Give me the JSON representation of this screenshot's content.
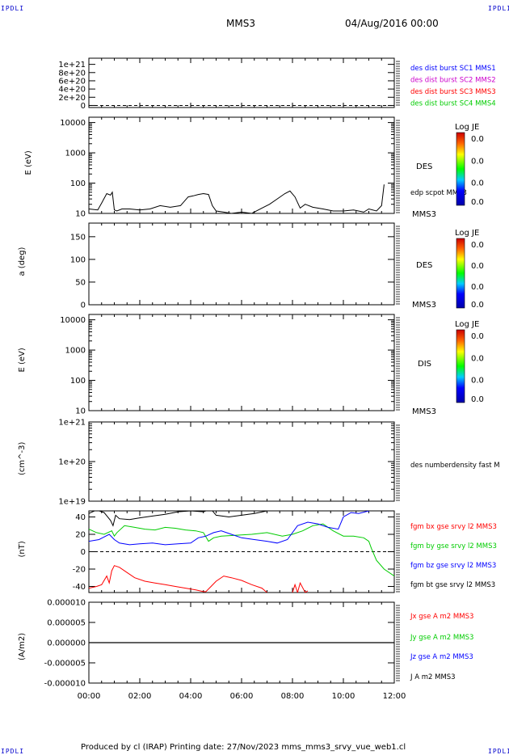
{
  "header": {
    "corner_tl": "IPDLI",
    "corner_tr": "IPDLI",
    "corner_bl": "IPDLI",
    "corner_br": "IPDLI",
    "spacecraft": "MMS3",
    "datetime": "04/Aug/2016 00:00"
  },
  "footer": {
    "text": "Produced by cl (IRAP)   Printing date: 27/Nov/2023   mms_mms3_srvy_vue_web1.cl"
  },
  "colors": {
    "mms1": "#0000ff",
    "mms2": "#cc00cc",
    "mms3": "#ff0000",
    "mms4": "#00cc00",
    "bx": "#ff0000",
    "by": "#00cc00",
    "bz": "#0000ff",
    "bt": "#000000"
  },
  "chart_data": [
    {
      "type": "line",
      "panel": "distribution burst flag",
      "ylim": [
        -5e+19,
        1.15e+21
      ],
      "yticks": [
        "1e+21",
        "8e+20",
        "6e+20",
        "4e+20",
        "2e+20",
        "0"
      ],
      "legend": [
        "des dist burst SC1 MMS1",
        "des dist burst SC2 MMS2",
        "des dist burst SC3 MMS3",
        "des dist burst SC4 MMS4"
      ],
      "zero_line": true
    },
    {
      "type": "heatmap",
      "panel": "DES energy spectrogram",
      "ylabel": "E (eV)",
      "yscale": "log",
      "ylim": [
        10,
        15000
      ],
      "yticks": [
        "10000",
        "1000",
        "100",
        "10"
      ],
      "instrument": "DES",
      "side_label": "MMS3",
      "overlay_label": "edp scpot MMS3",
      "colorbar": {
        "title": "Log JE",
        "ticks": [
          "0.0",
          "0.0",
          "0.0",
          "0.0"
        ]
      },
      "scpot": {
        "x_hours": [
          0,
          0.35,
          0.5,
          0.7,
          0.85,
          0.92,
          1.0,
          1.1,
          1.3,
          1.6,
          2.0,
          2.4,
          2.8,
          3.2,
          3.6,
          3.9,
          4.1,
          4.3,
          4.5,
          4.7,
          4.85,
          5.0,
          5.3,
          5.6,
          6.0,
          6.4,
          6.8,
          7.1,
          7.4,
          7.7,
          7.9,
          8.1,
          8.3,
          8.5,
          8.8,
          9.2,
          9.6,
          10.0,
          10.4,
          10.8,
          11.0,
          11.3,
          11.5,
          11.6
        ],
        "values": [
          14,
          13,
          22,
          45,
          40,
          50,
          13,
          12,
          14,
          14,
          13,
          14,
          18,
          16,
          18,
          35,
          38,
          42,
          45,
          42,
          18,
          12,
          11,
          10,
          11,
          10,
          15,
          20,
          30,
          45,
          55,
          35,
          15,
          20,
          16,
          14,
          12,
          12,
          13,
          11,
          14,
          12,
          18,
          90
        ]
      }
    },
    {
      "type": "heatmap",
      "panel": "DES pitch angle",
      "ylabel": "a (deg)",
      "ylim": [
        0,
        180
      ],
      "yticks": [
        "150",
        "100",
        "50",
        "0"
      ],
      "instrument": "DES",
      "side_label": "MMS3",
      "colorbar": {
        "title": "Log JE",
        "ticks": [
          "0.0",
          "0.0",
          "0.0",
          "0.0"
        ]
      }
    },
    {
      "type": "heatmap",
      "panel": "DIS energy spectrogram",
      "ylabel": "E (eV)",
      "yscale": "log",
      "ylim": [
        10,
        15000
      ],
      "yticks": [
        "10000",
        "1000",
        "100",
        "10"
      ],
      "instrument": "DIS",
      "side_label": "MMS3",
      "colorbar": {
        "title": "Log JE",
        "ticks": [
          "0.0",
          "0.0",
          "0.0",
          "0.0"
        ]
      }
    },
    {
      "type": "line",
      "panel": "density",
      "ylabel": "(cm^-3)",
      "yscale": "log",
      "ylim": [
        1e+19,
        1e+21
      ],
      "yticks": [
        "1e+21",
        "1e+20",
        "1e+19"
      ],
      "legend": [
        "des numberdensity fast M"
      ]
    },
    {
      "type": "line",
      "panel": "magnetic field",
      "ylabel": "(nT)",
      "ylim": [
        -47,
        47
      ],
      "yticks": [
        "40",
        "20",
        "0",
        "-20",
        "-40"
      ],
      "zero_line": true,
      "legend": [
        "fgm bx gse srvy l2 MMS3",
        "fgm by gse srvy l2 MMS3",
        "fgm bz gse srvy l2 MMS3",
        "fgm bt gse srvy l2 MMS3"
      ],
      "series": [
        {
          "name": "fgm bt gse srvy l2 MMS3",
          "x": [
            0,
            0.3,
            0.6,
            0.85,
            0.95,
            1.05,
            1.2,
            1.6,
            2.0,
            2.5,
            3.0,
            3.5,
            4.0,
            4.5,
            4.8,
            5.0,
            5.5,
            6.0,
            6.5,
            7.0,
            7.3
          ],
          "values": [
            44,
            48,
            45,
            36,
            30,
            42,
            38,
            37,
            39,
            41,
            43,
            46,
            47,
            46,
            49,
            42,
            40,
            42,
            44,
            47,
            48
          ]
        },
        {
          "name": "fgm by gse srvy l2 MMS3",
          "x": [
            0,
            0.3,
            0.6,
            0.9,
            1.0,
            1.1,
            1.4,
            1.8,
            2.2,
            2.6,
            3.0,
            3.4,
            3.8,
            4.2,
            4.5,
            4.7,
            4.9,
            5.2,
            5.8,
            6.4,
            7.0,
            7.6,
            8.0,
            8.4,
            8.8,
            9.2,
            9.6,
            10.0,
            10.4,
            10.8,
            11.0,
            11.1,
            11.3,
            11.6,
            12.0
          ],
          "values": [
            26,
            22,
            20,
            24,
            18,
            22,
            30,
            28,
            26,
            25,
            28,
            27,
            25,
            24,
            22,
            12,
            16,
            18,
            19,
            20,
            22,
            18,
            20,
            24,
            30,
            32,
            24,
            18,
            18,
            16,
            12,
            4,
            -10,
            -20,
            -28
          ]
        },
        {
          "name": "fgm bz gse srvy l2 MMS3",
          "x": [
            0,
            0.4,
            0.8,
            1.0,
            1.2,
            1.6,
            2.0,
            2.5,
            3.0,
            3.5,
            4.0,
            4.3,
            4.6,
            4.9,
            5.2,
            5.6,
            6.0,
            6.5,
            7.0,
            7.4,
            7.8,
            8.2,
            8.6,
            9.0,
            9.4,
            9.8,
            10.0,
            10.3,
            10.6,
            11.0,
            11.2
          ],
          "values": [
            12,
            14,
            20,
            14,
            10,
            8,
            9,
            10,
            8,
            9,
            10,
            16,
            18,
            22,
            24,
            20,
            16,
            14,
            12,
            10,
            14,
            30,
            34,
            32,
            28,
            26,
            40,
            45,
            44,
            47,
            49
          ]
        },
        {
          "name": "fgm bx gse srvy l2 MMS3",
          "x": [
            0,
            0.3,
            0.5,
            0.7,
            0.8,
            0.9,
            1.0,
            1.2,
            1.5,
            1.8,
            2.2,
            2.6,
            3.0,
            3.4,
            3.8,
            4.2,
            4.5,
            4.6,
            4.8,
            5.0,
            5.3,
            5.6,
            6.0,
            6.4,
            6.8,
            7.0
          ],
          "values": [
            -42,
            -40,
            -38,
            -28,
            -36,
            -22,
            -16,
            -18,
            -24,
            -30,
            -34,
            -36,
            -38,
            -40,
            -42,
            -44,
            -46,
            -46,
            -40,
            -34,
            -28,
            -30,
            -33,
            -38,
            -42,
            -47
          ]
        },
        {
          "name": "fgm bx gse srvy l2 MMS3 (late segment)",
          "x": [
            8.0,
            8.1,
            8.2,
            8.3,
            8.5,
            8.6
          ],
          "values": [
            -47,
            -38,
            -47,
            -36,
            -47,
            -45
          ]
        }
      ]
    },
    {
      "type": "line",
      "panel": "current density",
      "ylabel": "(A/m2)",
      "ylim": [
        -1e-05,
        1e-05
      ],
      "yticks": [
        "0.000010",
        "0.000005",
        "0.000000",
        "-0.000005",
        "-0.000010"
      ],
      "legend": [
        "Jx gse A m2 MMS3",
        "Jy gse A m2 MMS3",
        "Jz gse A m2 MMS3",
        "J A m2 MMS3"
      ],
      "series": [
        {
          "name": "J A m2 MMS3",
          "x": [
            0,
            12
          ],
          "values": [
            0,
            0
          ]
        }
      ]
    }
  ],
  "x_axis": {
    "range_hours": [
      0,
      12
    ],
    "ticks": [
      "00:00",
      "02:00",
      "04:00",
      "06:00",
      "08:00",
      "10:00",
      "12:00"
    ]
  }
}
